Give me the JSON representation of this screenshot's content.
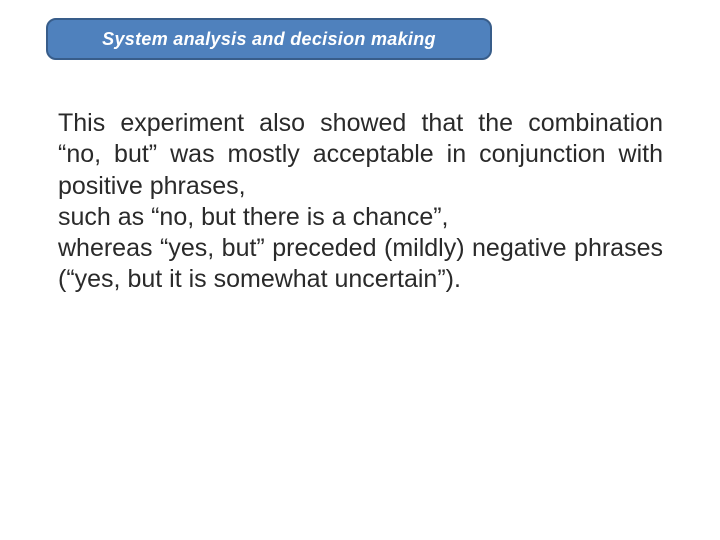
{
  "header": {
    "title": "System analysis and decision making",
    "background_color": "#4f81bd",
    "border_color": "#385d8a",
    "text_color": "#ffffff",
    "font_style": "italic",
    "font_weight": "bold",
    "font_size": 18
  },
  "body": {
    "paragraph1": "This experiment also showed that the combination “no, but” was mostly acceptable in conjunction with positive phrases,",
    "paragraph2": "such as “no, but there is a chance”,",
    "paragraph3": "whereas “yes, but” preceded (mildly) negative phrases (“yes, but it is somewhat uncertain”).",
    "text_color": "#2a2a2a",
    "font_size": 25
  },
  "background_color": "#ffffff"
}
